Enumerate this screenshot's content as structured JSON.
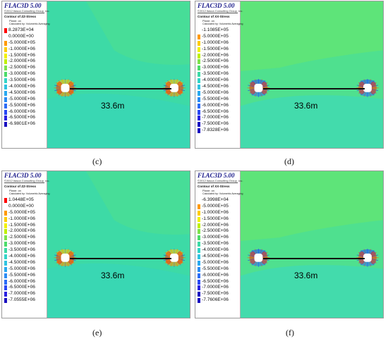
{
  "panels": [
    {
      "id": "c",
      "caption": "(c)",
      "legend": {
        "title": "FLAC3D 5.00",
        "copyright": "©2012 Itasca Consulting Group, Inc.",
        "contour": "Contour of ZZ-Stress",
        "plane": "Plane: on",
        "calculated": "Calculated by: Volumetric Averaging",
        "values": [
          "8.2873E+04",
          "0.0000E+00",
          "-5.0000E+05",
          "-1.0000E+06",
          "-1.5000E+06",
          "-2.0000E+06",
          "-2.5000E+06",
          "-3.0000E+06",
          "-3.5000E+06",
          "-4.0000E+06",
          "-4.5000E+06",
          "-5.0000E+06",
          "-5.5000E+06",
          "-6.0000E+06",
          "-6.5000E+06",
          "-6.9801E+06"
        ]
      },
      "span_label": "33.6m"
    },
    {
      "id": "d",
      "caption": "(d)",
      "legend": {
        "title": "FLAC3D 5.00",
        "copyright": "©2012 Itasca Consulting Group, Inc.",
        "contour": "Contour of XX-Stress",
        "plane": "Plane: on",
        "calculated": "Calculated by: Volumetric Averaging",
        "values": [
          "-1.1085E+05",
          "-5.0000E+05",
          "-1.0000E+06",
          "-1.5000E+06",
          "-2.0000E+06",
          "-2.5000E+06",
          "-3.0000E+06",
          "-3.5000E+06",
          "-4.0000E+06",
          "-4.5000E+06",
          "-5.0000E+06",
          "-5.5000E+06",
          "-6.0000E+06",
          "-6.5000E+06",
          "-7.0000E+06",
          "-7.5000E+06",
          "-7.8328E+06"
        ]
      },
      "span_label": "33.6m"
    },
    {
      "id": "e",
      "caption": "(e)",
      "legend": {
        "title": "FLAC3D 5.00",
        "copyright": "©2012 Itasca Consulting Group, Inc.",
        "contour": "Contour of ZZ-Stress",
        "plane": "Plane: on",
        "calculated": "Calculated by: Volumetric Averaging",
        "values": [
          "1.0448E+05",
          "0.0000E+00",
          "-5.0000E+05",
          "-1.0000E+06",
          "-1.5000E+06",
          "-2.0000E+06",
          "-2.5000E+06",
          "-3.0000E+06",
          "-3.5000E+06",
          "-4.0000E+06",
          "-4.5000E+06",
          "-5.0000E+06",
          "-5.5000E+06",
          "-6.0000E+06",
          "-6.5000E+06",
          "-7.0000E+06",
          "-7.0555E+06"
        ]
      },
      "span_label": "33.6m"
    },
    {
      "id": "f",
      "caption": "(f)",
      "legend": {
        "title": "FLAC3D 5.00",
        "copyright": "©2012 Itasca Consulting Group, Inc.",
        "contour": "Contour of XX-Stress",
        "plane": "Plane: on",
        "calculated": "Calculated by: Volumetric Averaging",
        "values": [
          "-6.3998E+04",
          "-5.0000E+05",
          "-1.0000E+06",
          "-1.5000E+06",
          "-2.0000E+06",
          "-2.5000E+06",
          "-3.0000E+06",
          "-3.5000E+06",
          "-4.0000E+06",
          "-4.5000E+06",
          "-5.0000E+06",
          "-5.5000E+06",
          "-6.0000E+06",
          "-6.5000E+06",
          "-7.0000E+06",
          "-7.5000E+06",
          "-7.7606E+06"
        ]
      },
      "span_label": "33.6m"
    }
  ],
  "colors": {
    "field_zz": "#3ddaa6",
    "field_xx": "#4fe08f",
    "compression_high": "#1e4cff",
    "tension": "#ff2a00",
    "opening": "#ffffff"
  },
  "legend_scale": [
    "#ff0000",
    "#ffffff",
    "#ff9a00",
    "#ffcc00",
    "#f2f200",
    "#bff000",
    "#7fe34c",
    "#4ddb6a",
    "#3ddaa6",
    "#33d4c8",
    "#2fc3e0",
    "#29a9f0",
    "#2a8cf5",
    "#2b6cf7",
    "#2a48f5",
    "#2a20e0",
    "#1a10c0"
  ]
}
